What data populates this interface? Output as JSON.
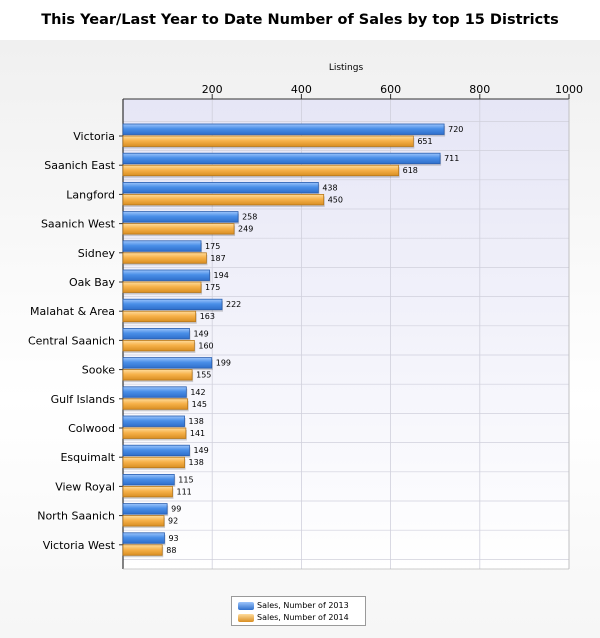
{
  "title": "This Year/Last Year to Date Number of Sales by top 15 Districts",
  "chart_data": {
    "type": "bar",
    "orientation": "horizontal",
    "title": "This Year/Last Year to Date Number of Sales by top 15 Districts",
    "xlabel": "Listings",
    "ylabel": "",
    "xlim": [
      0,
      1000
    ],
    "x_ticks": [
      200,
      400,
      600,
      800,
      1000
    ],
    "x_axis_position": "top",
    "grid": true,
    "legend_position": "bottom",
    "categories": [
      "Victoria",
      "Saanich East",
      "Langford",
      "Saanich West",
      "Sidney",
      "Oak Bay",
      "Malahat & Area",
      "Central Saanich",
      "Sooke",
      "Gulf Islands",
      "Colwood",
      "Esquimalt",
      "View Royal",
      "North Saanich",
      "Victoria West"
    ],
    "series": [
      {
        "name": "Sales, Number of 2013",
        "color": "#4a8fe8",
        "values": [
          720,
          711,
          438,
          258,
          175,
          194,
          222,
          149,
          199,
          142,
          138,
          149,
          115,
          99,
          93
        ]
      },
      {
        "name": "Sales, Number of 2014",
        "color": "#f7b24a",
        "values": [
          651,
          618,
          450,
          249,
          187,
          175,
          163,
          160,
          155,
          145,
          141,
          138,
          111,
          92,
          88
        ]
      }
    ]
  }
}
